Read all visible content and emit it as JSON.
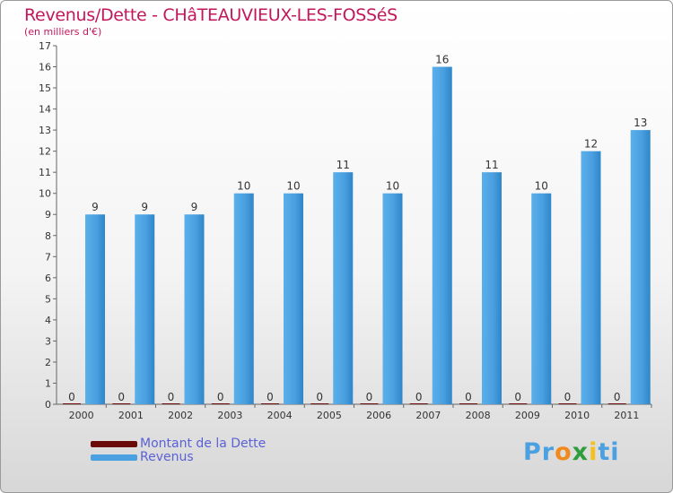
{
  "chart_data": {
    "type": "bar",
    "title": "Revenus/Dette - CHâTEAUVIEUX-LES-FOSSéS",
    "subtitle": "(en milliers d'€)",
    "categories": [
      "2000",
      "2001",
      "2002",
      "2003",
      "2004",
      "2005",
      "2006",
      "2007",
      "2008",
      "2009",
      "2010",
      "2011"
    ],
    "series": [
      {
        "name": "Montant de la Dette",
        "color": "#6b0a0a",
        "values": [
          0,
          0,
          0,
          0,
          0,
          0,
          0,
          0,
          0,
          0,
          0,
          0
        ]
      },
      {
        "name": "Revenus",
        "color": "#4aa0e0",
        "values": [
          9,
          9,
          9,
          10,
          10,
          11,
          10,
          16,
          11,
          10,
          12,
          13
        ]
      }
    ],
    "ylim": [
      0,
      17
    ],
    "yticks": [
      0,
      1,
      2,
      3,
      4,
      5,
      6,
      7,
      8,
      9,
      10,
      11,
      12,
      13,
      14,
      15,
      16,
      17
    ],
    "grid": false,
    "legend": "bottom-left"
  },
  "logo": {
    "parts": [
      "Pr",
      "o",
      "x",
      "i",
      "ti"
    ],
    "colors": [
      "#4aa0e0",
      "#f08a1c",
      "#2e9d3a",
      "#f3c01e",
      "#4aa0e0"
    ]
  }
}
